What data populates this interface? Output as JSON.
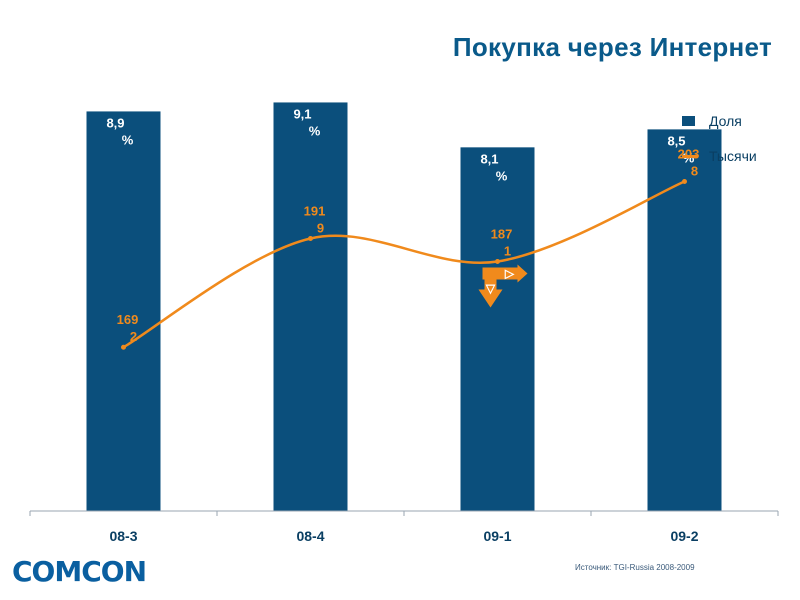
{
  "title": "Покупка через Интернет",
  "source": "Источник: TGI-Russia 2008-2009",
  "logo_text": "COMCON",
  "colors": {
    "bar": "#0b4f7c",
    "line": "#f08a1c",
    "title": "#0a5a8a",
    "text": "#0a3f63"
  },
  "chart_data": {
    "type": "bar+line",
    "categories": [
      "08-3",
      "08-4",
      "09-1",
      "09-2"
    ],
    "series": [
      {
        "name": "Доля",
        "type": "bar",
        "values": [
          8.9,
          9.1,
          8.1,
          8.5
        ],
        "labels": [
          [
            "8,9",
            "%"
          ],
          [
            "9,1",
            "%"
          ],
          [
            "8,1",
            "%"
          ],
          [
            "8,5",
            "%"
          ]
        ]
      },
      {
        "name": "Тысячи",
        "type": "line",
        "values": [
          16.92,
          19.19,
          18.71,
          20.38
        ],
        "labels": [
          [
            "169",
            "2"
          ],
          [
            "191",
            "9"
          ],
          [
            "187",
            "1"
          ],
          [
            "203",
            "8"
          ]
        ]
      }
    ],
    "bar_ylim": [
      0,
      9.6
    ],
    "line_ylim": [
      13.5,
      22.5
    ],
    "annotation": {
      "category": "09-1",
      "symbol": "▽▷"
    },
    "legend": {
      "position": "top-right",
      "entries": [
        "Доля",
        "Тысячи"
      ]
    }
  }
}
